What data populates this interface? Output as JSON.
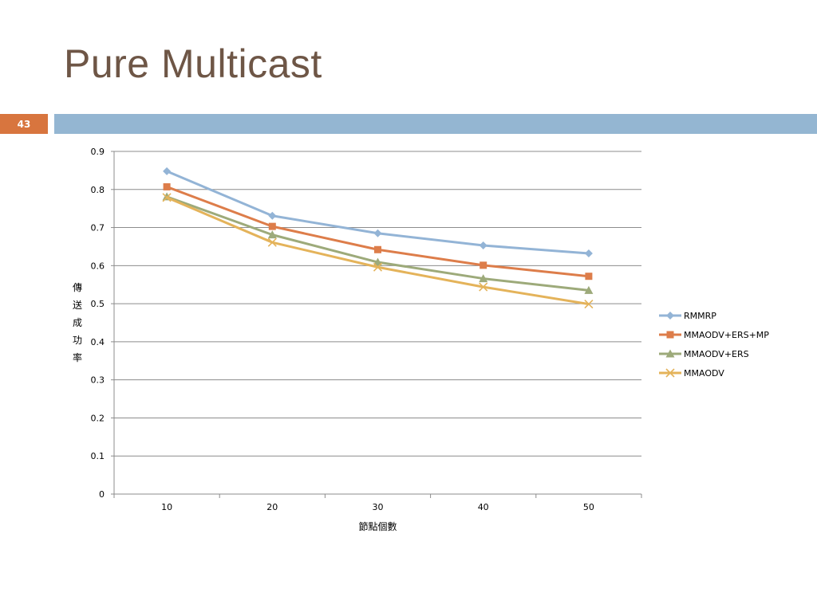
{
  "slide": {
    "title": "Pure Multicast",
    "page_number": "43",
    "accent_color": "#d8753e",
    "bar_color": "#94b6d2",
    "title_color": "#6e5646"
  },
  "chart_data": {
    "type": "line",
    "title": "",
    "xlabel": "節點個數",
    "ylabel": "傳送成功率",
    "categories": [
      "10",
      "20",
      "30",
      "40",
      "50"
    ],
    "ylim": [
      0,
      0.9
    ],
    "yticks": [
      "0",
      "0.1",
      "0.2",
      "0.3",
      "0.4",
      "0.5",
      "0.6",
      "0.7",
      "0.8",
      "0.9"
    ],
    "grid": true,
    "legend_position": "right",
    "series": [
      {
        "name": "RMMRP",
        "values": [
          0.848,
          0.731,
          0.685,
          0.653,
          0.632
        ],
        "color": "#93b4d6",
        "marker": "diamond"
      },
      {
        "name": "MMAODV+ERS+MP",
        "values": [
          0.807,
          0.703,
          0.642,
          0.601,
          0.572
        ],
        "color": "#dd7d4a",
        "marker": "square"
      },
      {
        "name": "MMAODV+ERS",
        "values": [
          0.781,
          0.681,
          0.609,
          0.566,
          0.535
        ],
        "color": "#9daa7a",
        "marker": "triangle"
      },
      {
        "name": "MMAODV",
        "values": [
          0.779,
          0.661,
          0.596,
          0.544,
          0.499
        ],
        "color": "#e4b35a",
        "marker": "x"
      }
    ]
  }
}
